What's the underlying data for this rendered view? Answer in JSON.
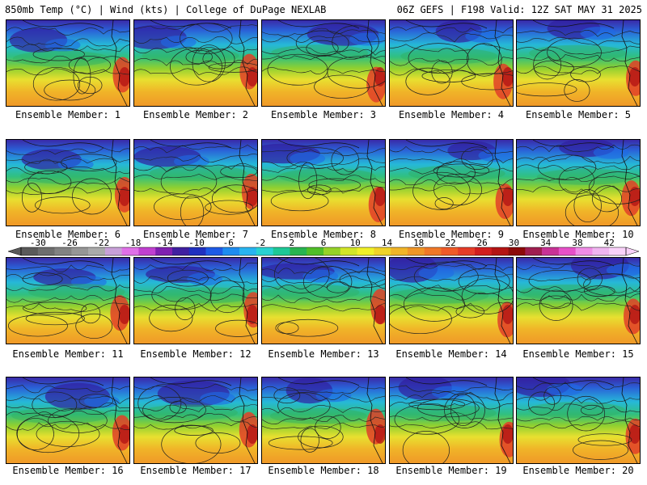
{
  "header": {
    "left": "850mb Temp (°C) | Wind (kts) | College of DuPage NEXLAB",
    "right": "06Z GEFS | F198 Valid: 12Z SAT MAY 31 2025"
  },
  "panels": [
    {
      "label": "Ensemble Member: 1"
    },
    {
      "label": "Ensemble Member: 2"
    },
    {
      "label": "Ensemble Member: 3"
    },
    {
      "label": "Ensemble Member: 4"
    },
    {
      "label": "Ensemble Member: 5"
    },
    {
      "label": "Ensemble Member: 6"
    },
    {
      "label": "Ensemble Member: 7"
    },
    {
      "label": "Ensemble Member: 8"
    },
    {
      "label": "Ensemble Member: 9"
    },
    {
      "label": "Ensemble Member: 10"
    },
    {
      "label": "Ensemble Member: 11"
    },
    {
      "label": "Ensemble Member: 12"
    },
    {
      "label": "Ensemble Member: 13"
    },
    {
      "label": "Ensemble Member: 14"
    },
    {
      "label": "Ensemble Member: 15"
    },
    {
      "label": "Ensemble Member: 16"
    },
    {
      "label": "Ensemble Member: 17"
    },
    {
      "label": "Ensemble Member: 18"
    },
    {
      "label": "Ensemble Member: 19"
    },
    {
      "label": "Ensemble Member: 20"
    }
  ],
  "colorbar": {
    "ticks": [
      "-30",
      "-26",
      "-22",
      "-18",
      "-14",
      "-10",
      "-6",
      "-2",
      "2",
      "6",
      "10",
      "14",
      "18",
      "22",
      "26",
      "30",
      "34",
      "38",
      "42"
    ],
    "colors": [
      "#5a5a5a",
      "#6e6e6e",
      "#828282",
      "#969696",
      "#aaaaaa",
      "#c8a0d8",
      "#e070e8",
      "#c040d0",
      "#8020b0",
      "#4020a0",
      "#2030c0",
      "#1e5ae6",
      "#1e8cf0",
      "#28b4f0",
      "#28d2d2",
      "#1ec896",
      "#28b450",
      "#50be28",
      "#96d228",
      "#d2e628",
      "#f0f028",
      "#f0d228",
      "#f0b428",
      "#f09628",
      "#f07828",
      "#f05a28",
      "#e63c28",
      "#d21e1e",
      "#b41414",
      "#8c0a0a",
      "#a01e50",
      "#c83296",
      "#e650c8",
      "#f08ce6",
      "#f0b4f0",
      "#fad2fa"
    ]
  }
}
